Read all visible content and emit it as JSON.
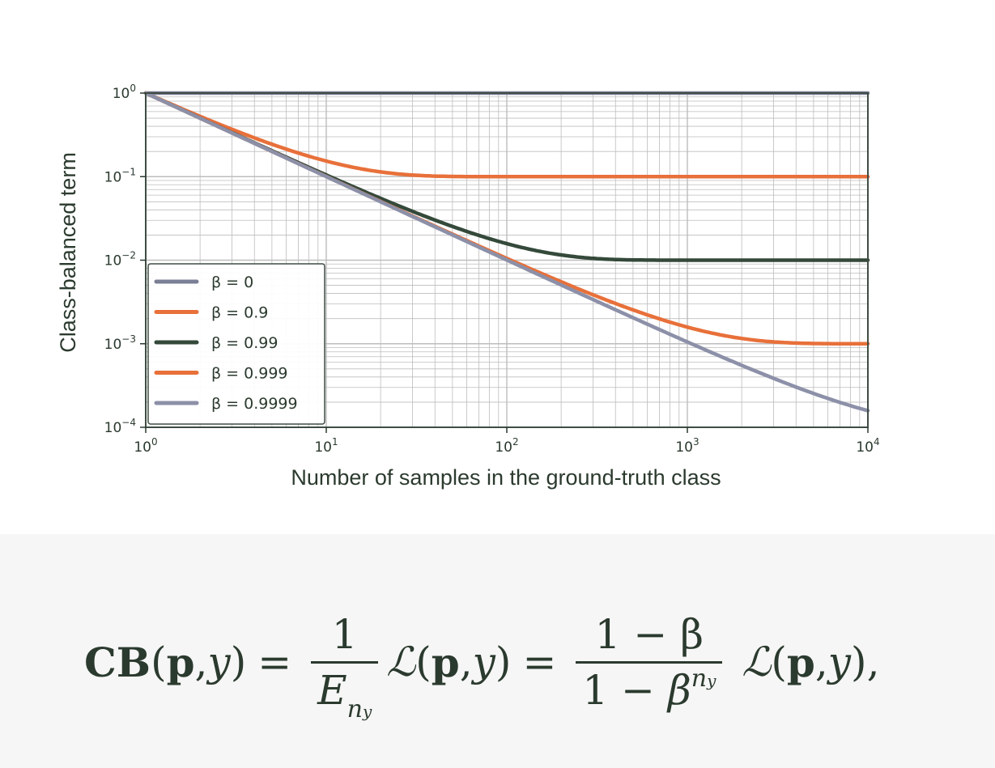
{
  "chart_data": {
    "type": "line",
    "xlabel": "Number of samples in the ground-truth class",
    "ylabel": "Class-balanced term",
    "xscale": "log",
    "yscale": "log",
    "xlim": [
      1,
      10000
    ],
    "ylim": [
      0.0001,
      1
    ],
    "x_ticks": [
      {
        "value": 1,
        "base": "10",
        "exp": "0"
      },
      {
        "value": 10,
        "base": "10",
        "exp": "1"
      },
      {
        "value": 100,
        "base": "10",
        "exp": "2"
      },
      {
        "value": 1000,
        "base": "10",
        "exp": "3"
      },
      {
        "value": 10000,
        "base": "10",
        "exp": "4"
      }
    ],
    "y_ticks": [
      {
        "value": 1,
        "base": "10",
        "exp": "0"
      },
      {
        "value": 0.1,
        "base": "10",
        "exp": "−1"
      },
      {
        "value": 0.01,
        "base": "10",
        "exp": "−2"
      },
      {
        "value": 0.001,
        "base": "10",
        "exp": "−3"
      },
      {
        "value": 0.0001,
        "base": "10",
        "exp": "−4"
      }
    ],
    "grid": true,
    "legend_position": "lower-left",
    "formula": "(1 − β) / (1 − β^n)",
    "x": [
      1,
      2,
      5,
      10,
      20,
      50,
      100,
      200,
      500,
      1000,
      2000,
      5000,
      10000
    ],
    "series": [
      {
        "name": "β = 0",
        "beta": 0,
        "color": "#7a7f96",
        "values": [
          1,
          1,
          1,
          1,
          1,
          1,
          1,
          1,
          1,
          1,
          1,
          1,
          1
        ]
      },
      {
        "name": "β = 0.9",
        "beta": 0.9,
        "color": "#e8703a",
        "values": [
          1,
          0.526,
          0.244,
          0.153,
          0.114,
          0.1005,
          0.1,
          0.1,
          0.1,
          0.1,
          0.1,
          0.1,
          0.1
        ]
      },
      {
        "name": "β = 0.99",
        "beta": 0.99,
        "color": "#34493a",
        "values": [
          1,
          0.503,
          0.204,
          0.1096,
          0.0551,
          0.0254,
          0.0158,
          0.0116,
          0.01007,
          0.01,
          0.01,
          0.01,
          0.01
        ]
      },
      {
        "name": "β = 0.999",
        "beta": 0.999,
        "color": "#e8703a",
        "values": [
          1,
          0.5003,
          0.2004,
          0.1005,
          0.0505,
          0.0205,
          0.0105,
          0.00552,
          0.00254,
          0.00158,
          0.00116,
          0.00101,
          0.001
        ]
      },
      {
        "name": "β = 0.9999",
        "beta": 0.9999,
        "color": "#8c90a8",
        "values": [
          1,
          0.5,
          0.2,
          0.1,
          0.05,
          0.02,
          0.01,
          0.00501,
          0.00202,
          0.00105,
          0.000551,
          0.000254,
          0.000158
        ]
      }
    ]
  },
  "colors": {
    "text": "#2b3a2e",
    "frame": "#3f4d44",
    "grid": "#bdbdbd",
    "formula_background": "#f6f6f6"
  },
  "formula_text": {
    "cb": "CB",
    "p": "p",
    "y": "y",
    "one": "1",
    "E": "E",
    "n": "n",
    "L": "ℒ",
    "one_minus_beta": "1 − β",
    "one_minus": "1 − ",
    "beta": "β",
    "equals": "=",
    "comma": ","
  }
}
